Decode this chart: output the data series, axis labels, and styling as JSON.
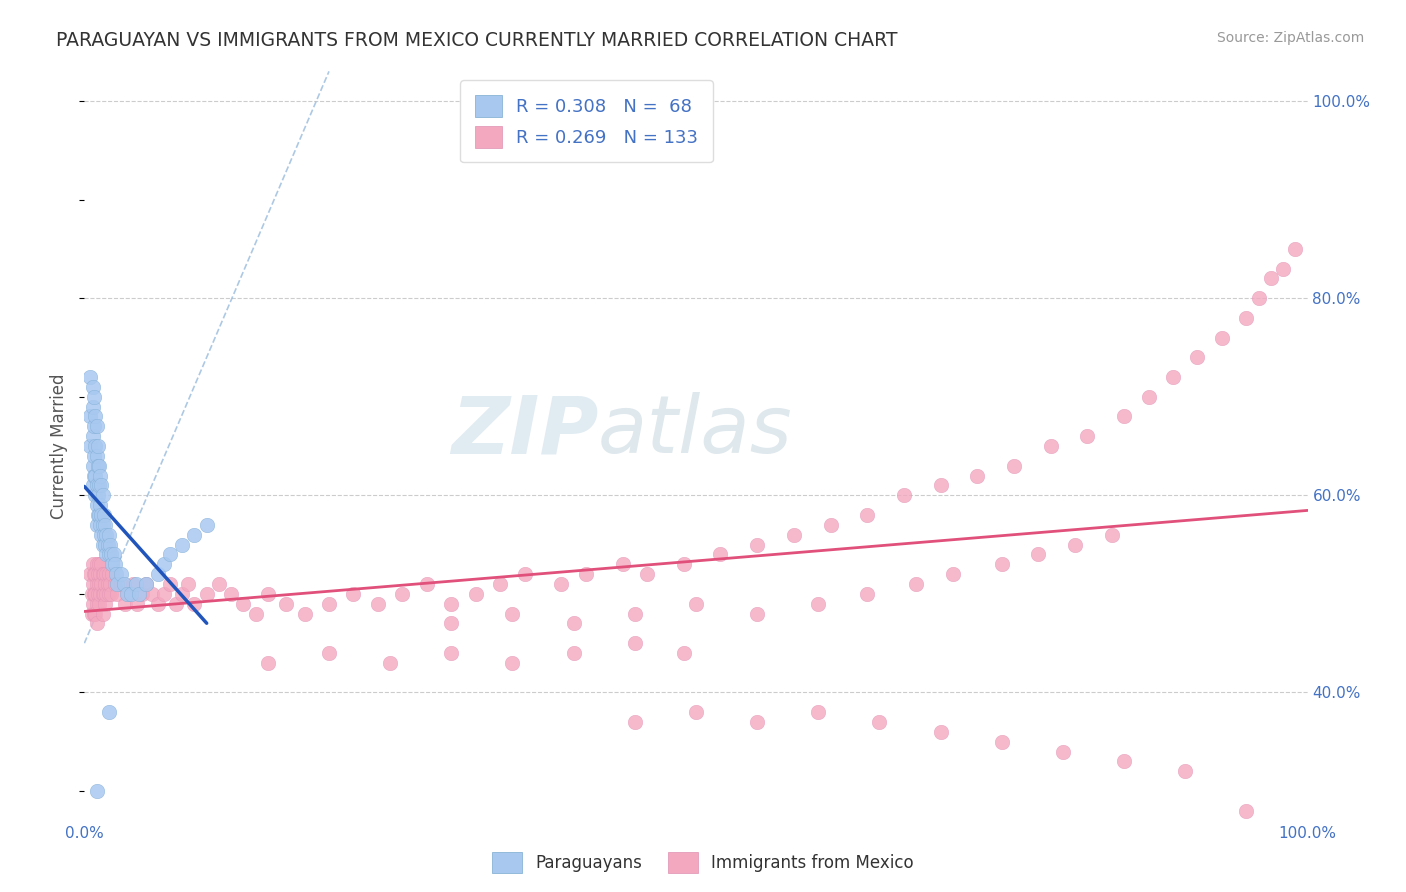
{
  "title": "PARAGUAYAN VS IMMIGRANTS FROM MEXICO CURRENTLY MARRIED CORRELATION CHART",
  "source": "Source: ZipAtlas.com",
  "ylabel": "Currently Married",
  "legend_label1": "Paraguayans",
  "legend_label2": "Immigrants from Mexico",
  "R1": 0.308,
  "N1": 68,
  "R2": 0.269,
  "N2": 133,
  "color_blue": "#a8c8f0",
  "color_blue_line": "#2255bb",
  "color_pink": "#f4a8c0",
  "color_pink_line": "#e0507a",
  "watermark_zip": "ZIP",
  "watermark_atlas": "atlas",
  "xlim": [
    0.0,
    1.0
  ],
  "ylim": [
    0.27,
    1.03
  ],
  "yticks": [
    0.4,
    0.6,
    0.8,
    1.0
  ],
  "ytick_labels": [
    "40.0%",
    "60.0%",
    "80.0%",
    "100.0%"
  ],
  "blue_x": [
    0.005,
    0.005,
    0.005,
    0.007,
    0.007,
    0.007,
    0.007,
    0.007,
    0.008,
    0.008,
    0.008,
    0.008,
    0.009,
    0.009,
    0.009,
    0.009,
    0.01,
    0.01,
    0.01,
    0.01,
    0.01,
    0.011,
    0.011,
    0.011,
    0.011,
    0.012,
    0.012,
    0.012,
    0.013,
    0.013,
    0.013,
    0.014,
    0.014,
    0.014,
    0.015,
    0.015,
    0.015,
    0.016,
    0.016,
    0.017,
    0.017,
    0.018,
    0.018,
    0.019,
    0.02,
    0.02,
    0.021,
    0.022,
    0.023,
    0.024,
    0.025,
    0.026,
    0.027,
    0.03,
    0.032,
    0.035,
    0.038,
    0.042,
    0.045,
    0.05,
    0.06,
    0.065,
    0.07,
    0.08,
    0.09,
    0.1,
    0.02,
    0.01
  ],
  "blue_y": [
    0.72,
    0.68,
    0.65,
    0.71,
    0.69,
    0.66,
    0.63,
    0.61,
    0.7,
    0.67,
    0.64,
    0.62,
    0.68,
    0.65,
    0.62,
    0.6,
    0.67,
    0.64,
    0.61,
    0.59,
    0.57,
    0.65,
    0.63,
    0.6,
    0.58,
    0.63,
    0.61,
    0.58,
    0.62,
    0.59,
    0.57,
    0.61,
    0.58,
    0.56,
    0.6,
    0.57,
    0.55,
    0.58,
    0.56,
    0.57,
    0.55,
    0.56,
    0.54,
    0.55,
    0.56,
    0.54,
    0.55,
    0.54,
    0.53,
    0.54,
    0.53,
    0.52,
    0.51,
    0.52,
    0.51,
    0.5,
    0.5,
    0.51,
    0.5,
    0.51,
    0.52,
    0.53,
    0.54,
    0.55,
    0.56,
    0.57,
    0.38,
    0.3
  ],
  "pink_x": [
    0.005,
    0.006,
    0.006,
    0.007,
    0.007,
    0.007,
    0.008,
    0.008,
    0.008,
    0.009,
    0.009,
    0.009,
    0.01,
    0.01,
    0.01,
    0.01,
    0.011,
    0.011,
    0.012,
    0.012,
    0.012,
    0.013,
    0.013,
    0.014,
    0.014,
    0.015,
    0.015,
    0.015,
    0.016,
    0.016,
    0.017,
    0.017,
    0.018,
    0.018,
    0.019,
    0.02,
    0.02,
    0.021,
    0.022,
    0.023,
    0.025,
    0.027,
    0.03,
    0.033,
    0.036,
    0.04,
    0.043,
    0.047,
    0.05,
    0.055,
    0.06,
    0.065,
    0.07,
    0.075,
    0.08,
    0.085,
    0.09,
    0.1,
    0.11,
    0.12,
    0.13,
    0.14,
    0.15,
    0.165,
    0.18,
    0.2,
    0.22,
    0.24,
    0.26,
    0.28,
    0.3,
    0.32,
    0.34,
    0.36,
    0.39,
    0.41,
    0.44,
    0.46,
    0.49,
    0.52,
    0.55,
    0.58,
    0.61,
    0.64,
    0.67,
    0.7,
    0.73,
    0.76,
    0.79,
    0.82,
    0.85,
    0.87,
    0.89,
    0.91,
    0.93,
    0.95,
    0.96,
    0.97,
    0.98,
    0.99,
    0.3,
    0.35,
    0.4,
    0.45,
    0.5,
    0.55,
    0.6,
    0.64,
    0.68,
    0.71,
    0.75,
    0.78,
    0.81,
    0.84,
    0.15,
    0.2,
    0.25,
    0.3,
    0.35,
    0.4,
    0.45,
    0.49,
    0.45,
    0.5,
    0.55,
    0.6,
    0.65,
    0.7,
    0.75,
    0.8,
    0.85,
    0.9,
    0.95
  ],
  "pink_y": [
    0.52,
    0.5,
    0.48,
    0.53,
    0.51,
    0.49,
    0.52,
    0.5,
    0.48,
    0.52,
    0.5,
    0.48,
    0.53,
    0.51,
    0.49,
    0.47,
    0.52,
    0.5,
    0.53,
    0.51,
    0.49,
    0.52,
    0.5,
    0.53,
    0.51,
    0.52,
    0.5,
    0.48,
    0.52,
    0.5,
    0.51,
    0.49,
    0.52,
    0.5,
    0.51,
    0.52,
    0.5,
    0.51,
    0.5,
    0.52,
    0.51,
    0.5,
    0.51,
    0.49,
    0.5,
    0.51,
    0.49,
    0.5,
    0.51,
    0.5,
    0.49,
    0.5,
    0.51,
    0.49,
    0.5,
    0.51,
    0.49,
    0.5,
    0.51,
    0.5,
    0.49,
    0.48,
    0.5,
    0.49,
    0.48,
    0.49,
    0.5,
    0.49,
    0.5,
    0.51,
    0.49,
    0.5,
    0.51,
    0.52,
    0.51,
    0.52,
    0.53,
    0.52,
    0.53,
    0.54,
    0.55,
    0.56,
    0.57,
    0.58,
    0.6,
    0.61,
    0.62,
    0.63,
    0.65,
    0.66,
    0.68,
    0.7,
    0.72,
    0.74,
    0.76,
    0.78,
    0.8,
    0.82,
    0.83,
    0.85,
    0.47,
    0.48,
    0.47,
    0.48,
    0.49,
    0.48,
    0.49,
    0.5,
    0.51,
    0.52,
    0.53,
    0.54,
    0.55,
    0.56,
    0.43,
    0.44,
    0.43,
    0.44,
    0.43,
    0.44,
    0.45,
    0.44,
    0.37,
    0.38,
    0.37,
    0.38,
    0.37,
    0.36,
    0.35,
    0.34,
    0.33,
    0.32,
    0.28
  ]
}
